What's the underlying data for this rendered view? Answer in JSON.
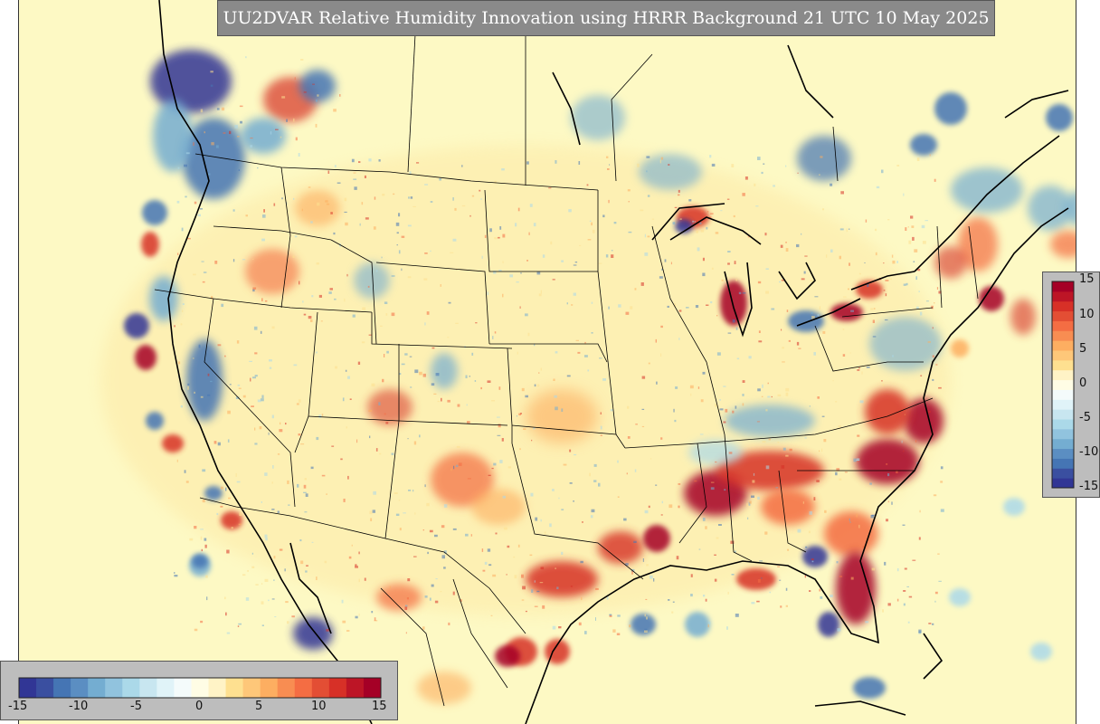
{
  "title": "UU2DVAR Relative Humidity Innovation using HRRR Background 21 UTC 10 May 2025",
  "map": {
    "region": "CONUS",
    "variable": "Relative Humidity Innovation",
    "background_model": "HRRR",
    "valid_time": "21 UTC 10 May 2025"
  },
  "colorbar": {
    "min": -15,
    "max": 15,
    "colormap": "RdYlBu_r",
    "vertical_tick_labels": [
      "15",
      "10",
      "5",
      "0",
      "-5",
      "-10",
      "-15"
    ],
    "horizontal_tick_labels": [
      "-15",
      "-10",
      "-5",
      "0",
      "5",
      "10",
      "15"
    ]
  },
  "colors": {
    "background": "#fdf9c4",
    "deep_red": "#a50026",
    "red": "#d73027",
    "orange": "#f46d43",
    "light_orange": "#fdae61",
    "pale": "#fee090",
    "light_blue": "#abd9e9",
    "blue": "#74add1",
    "mid_blue": "#4575b4",
    "deep_blue": "#313695",
    "title_bar": "#8a8a8a",
    "colorbar_panel": "#bdbdbd"
  }
}
